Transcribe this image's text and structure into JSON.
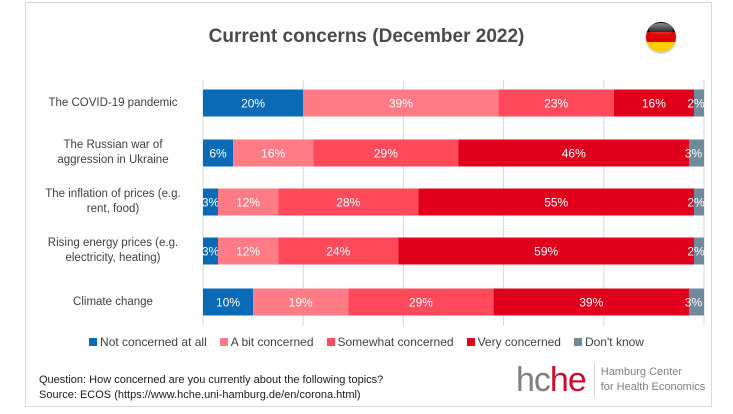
{
  "chart_data": {
    "type": "bar",
    "orientation": "horizontal",
    "stacked": "percent",
    "title": "Current concerns (December 2022)",
    "xlabel": "",
    "ylabel": "",
    "xlim": [
      0,
      100
    ],
    "grid": true,
    "legend_position": "bottom",
    "categories": [
      [
        "The COVID-19 pandemic"
      ],
      [
        "The Russian war of",
        "aggression in Ukraine"
      ],
      [
        "The inflation of prices (e.g.",
        "rent, food)"
      ],
      [
        "Rising energy prices (e.g.",
        "electricity, heating)"
      ],
      [
        "Climate change"
      ]
    ],
    "series": [
      {
        "name": "Not concerned at all",
        "color": "#0b6ab6",
        "values": [
          20,
          6,
          3,
          3,
          10
        ]
      },
      {
        "name": "A bit concerned",
        "color": "#ff7b85",
        "values": [
          39,
          16,
          12,
          12,
          19
        ]
      },
      {
        "name": "Somewhat concerned",
        "color": "#ff4a5c",
        "values": [
          23,
          29,
          28,
          24,
          29
        ]
      },
      {
        "name": "Very concerned",
        "color": "#e0001b",
        "values": [
          16,
          46,
          55,
          59,
          39
        ]
      },
      {
        "name": "Don't know",
        "color": "#6f8a9b",
        "values": [
          2,
          3,
          2,
          2,
          3
        ]
      }
    ],
    "value_suffix": "%"
  },
  "footnote": {
    "question": "Question: How concerned are you currently about the following topics?",
    "source": "Source: ECOS (https://www.hche.uni-hamburg.de/en/corona.html)"
  },
  "logo": {
    "mark_gray": "hc",
    "mark_red": "he",
    "line1": "Hamburg Center",
    "line2": "for Health Economics"
  },
  "flag": {
    "icon": "germany-flag-icon",
    "colors": [
      "#000000",
      "#dd0000",
      "#ffce00"
    ]
  }
}
